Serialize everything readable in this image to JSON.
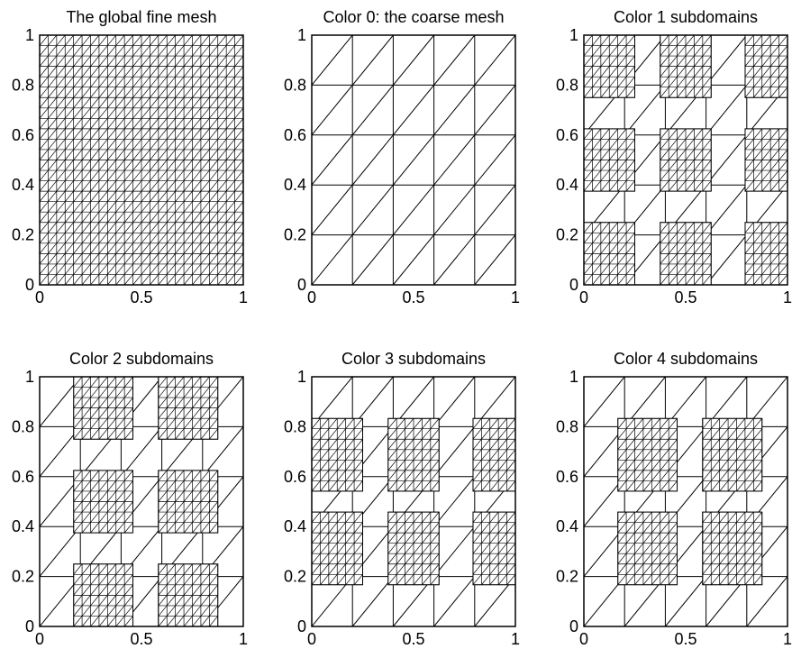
{
  "figure": {
    "background": "#ffffff",
    "line_color": "#000000",
    "panels": [
      {
        "title": "The global fine mesh",
        "x_ticks": [
          "0",
          "0.5",
          "1"
        ],
        "y_ticks": [
          "0",
          "0.2",
          "0.4",
          "0.6",
          "0.8",
          "1"
        ],
        "coarse_intervals": 0,
        "fine_intervals": 24,
        "fine_regions": [
          [
            0,
            1,
            0,
            1
          ]
        ]
      },
      {
        "title": "Color 0: the coarse mesh",
        "x_ticks": [
          "0",
          "0.5",
          "1"
        ],
        "y_ticks": [
          "0",
          "0.2",
          "0.4",
          "0.6",
          "0.8",
          "1"
        ],
        "coarse_intervals": 5,
        "fine_intervals": 24,
        "fine_regions": []
      },
      {
        "title": "Color 1 subdomains",
        "x_ticks": [
          "0",
          "0.5",
          "1"
        ],
        "y_ticks": [
          "0",
          "0.2",
          "0.4",
          "0.6",
          "0.8",
          "1"
        ],
        "coarse_intervals": 5,
        "fine_intervals": 24,
        "fine_regions": [
          [
            0,
            0.25,
            0,
            0.25
          ],
          [
            0.375,
            0.625,
            0,
            0.25
          ],
          [
            0.792,
            1,
            0,
            0.25
          ],
          [
            0,
            0.25,
            0.375,
            0.625
          ],
          [
            0.375,
            0.625,
            0.375,
            0.625
          ],
          [
            0.792,
            1,
            0.375,
            0.625
          ],
          [
            0,
            0.25,
            0.75,
            1
          ],
          [
            0.375,
            0.625,
            0.75,
            1
          ],
          [
            0.792,
            1,
            0.75,
            1
          ]
        ]
      },
      {
        "title": "Color 2 subdomains",
        "x_ticks": [
          "0",
          "0.5",
          "1"
        ],
        "y_ticks": [
          "0",
          "0.2",
          "0.4",
          "0.6",
          "0.8",
          "1"
        ],
        "coarse_intervals": 5,
        "fine_intervals": 24,
        "fine_regions": [
          [
            0.167,
            0.458,
            0,
            0.25
          ],
          [
            0.583,
            0.875,
            0,
            0.25
          ],
          [
            0.167,
            0.458,
            0.375,
            0.625
          ],
          [
            0.583,
            0.875,
            0.375,
            0.625
          ],
          [
            0.167,
            0.458,
            0.75,
            1
          ],
          [
            0.583,
            0.875,
            0.75,
            1
          ]
        ]
      },
      {
        "title": "Color 3 subdomains",
        "x_ticks": [
          "0",
          "0.5",
          "1"
        ],
        "y_ticks": [
          "0",
          "0.2",
          "0.4",
          "0.6",
          "0.8",
          "1"
        ],
        "coarse_intervals": 5,
        "fine_intervals": 24,
        "fine_regions": [
          [
            0,
            0.25,
            0.167,
            0.458
          ],
          [
            0.375,
            0.625,
            0.167,
            0.458
          ],
          [
            0.792,
            1,
            0.167,
            0.458
          ],
          [
            0,
            0.25,
            0.542,
            0.833
          ],
          [
            0.375,
            0.625,
            0.542,
            0.833
          ],
          [
            0.792,
            1,
            0.542,
            0.833
          ]
        ]
      },
      {
        "title": "Color 4 subdomains",
        "x_ticks": [
          "0",
          "0.5",
          "1"
        ],
        "y_ticks": [
          "0",
          "0.2",
          "0.4",
          "0.6",
          "0.8",
          "1"
        ],
        "coarse_intervals": 5,
        "fine_intervals": 24,
        "fine_regions": [
          [
            0.167,
            0.458,
            0.167,
            0.458
          ],
          [
            0.583,
            0.875,
            0.167,
            0.458
          ],
          [
            0.167,
            0.458,
            0.542,
            0.833
          ],
          [
            0.583,
            0.875,
            0.542,
            0.833
          ]
        ]
      }
    ]
  }
}
